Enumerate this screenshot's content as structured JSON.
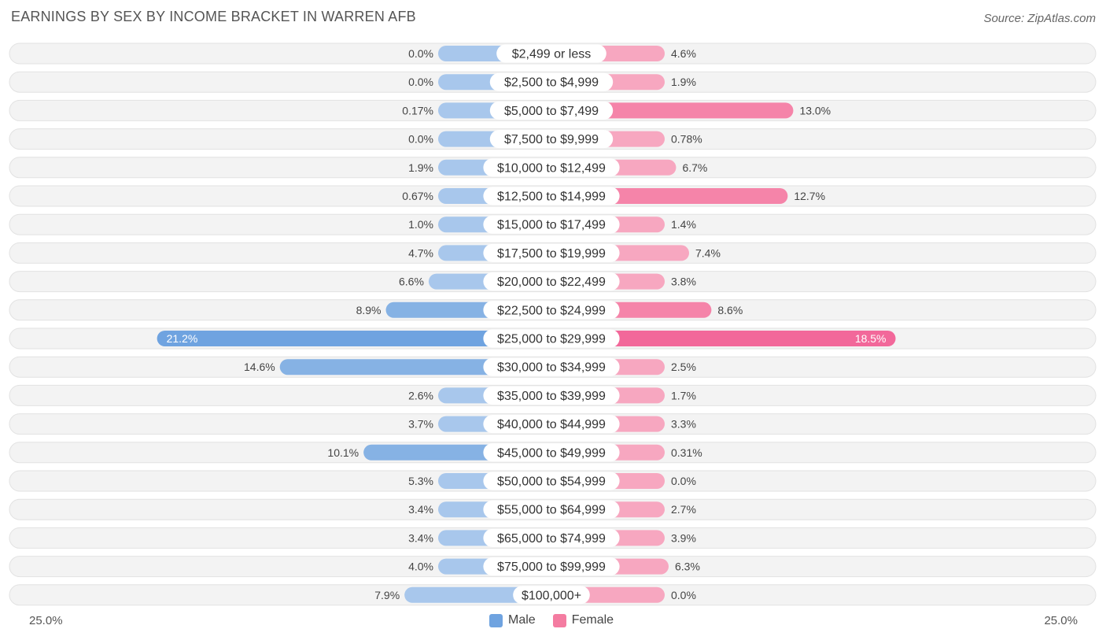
{
  "title": "EARNINGS BY SEX BY INCOME BRACKET IN WARREN AFB",
  "source": "Source: ZipAtlas.com",
  "axis": {
    "left_label": "25.0%",
    "right_label": "25.0%"
  },
  "legend": {
    "male_label": "Male",
    "female_label": "Female"
  },
  "colors": {
    "male": "#6fa3e0",
    "female": "#f47ca1",
    "male_light": "#a9c8ec",
    "female_light": "#f7a9c1",
    "row_bg": "#f2f2f2"
  },
  "chart_data": {
    "type": "bar",
    "orientation": "horizontal-diverging",
    "title": "EARNINGS BY SEX BY INCOME BRACKET IN WARREN AFB",
    "xlim": [
      -25,
      25
    ],
    "categories": [
      "$2,499 or less",
      "$2,500 to $4,999",
      "$5,000 to $7,499",
      "$7,500 to $9,999",
      "$10,000 to $12,499",
      "$12,500 to $14,999",
      "$15,000 to $17,499",
      "$17,500 to $19,999",
      "$20,000 to $22,499",
      "$22,500 to $24,999",
      "$25,000 to $29,999",
      "$30,000 to $34,999",
      "$35,000 to $39,999",
      "$40,000 to $44,999",
      "$45,000 to $49,999",
      "$50,000 to $54,999",
      "$55,000 to $64,999",
      "$65,000 to $74,999",
      "$75,000 to $99,999",
      "$100,000+"
    ],
    "series": [
      {
        "name": "Male",
        "values": [
          0.0,
          0.0,
          0.17,
          0.0,
          1.9,
          0.67,
          1.0,
          4.7,
          6.6,
          8.9,
          21.2,
          14.6,
          2.6,
          3.7,
          10.1,
          5.3,
          3.4,
          3.4,
          4.0,
          7.9
        ],
        "labels": [
          "0.0%",
          "0.0%",
          "0.17%",
          "0.0%",
          "1.9%",
          "0.67%",
          "1.0%",
          "4.7%",
          "6.6%",
          "8.9%",
          "21.2%",
          "14.6%",
          "2.6%",
          "3.7%",
          "10.1%",
          "5.3%",
          "3.4%",
          "3.4%",
          "4.0%",
          "7.9%"
        ]
      },
      {
        "name": "Female",
        "values": [
          4.6,
          1.9,
          13.0,
          0.78,
          6.7,
          12.7,
          1.4,
          7.4,
          3.8,
          8.6,
          18.5,
          2.5,
          1.7,
          3.3,
          0.31,
          0.0,
          2.7,
          3.9,
          6.3,
          0.0
        ],
        "labels": [
          "4.6%",
          "1.9%",
          "13.0%",
          "0.78%",
          "6.7%",
          "12.7%",
          "1.4%",
          "7.4%",
          "3.8%",
          "8.6%",
          "18.5%",
          "2.5%",
          "1.7%",
          "3.3%",
          "0.31%",
          "0.0%",
          "2.7%",
          "3.9%",
          "6.3%",
          "0.0%"
        ]
      }
    ]
  }
}
